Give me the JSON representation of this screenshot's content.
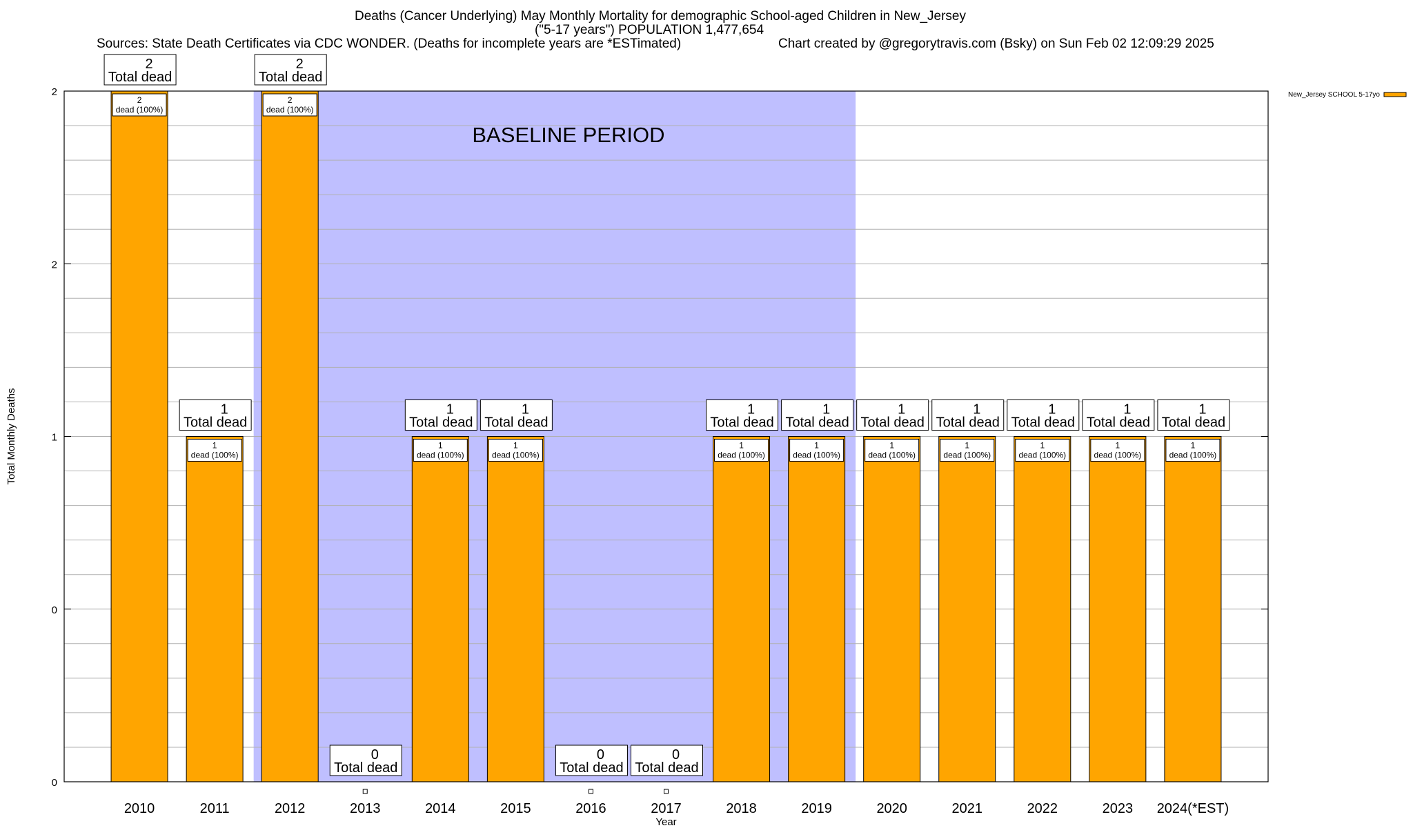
{
  "chart_data": {
    "type": "bar",
    "title": "Deaths (Cancer Underlying) May Monthly Mortality for demographic School-aged Children in New_Jersey",
    "subtitle": "(\"5-17 years\") POPULATION 1,477,654",
    "sources": "Sources: State Death Certificates via CDC WONDER. (Deaths for incomplete years are *ESTimated)",
    "credit": "Chart created by @gregorytravis.com (Bsky) on Sun Feb 02 12:09:29 2025",
    "xlabel": "Year",
    "ylabel": "Total Monthly Deaths",
    "ylim": [
      0,
      2
    ],
    "y_tick_labels": [
      "0",
      "0",
      "1",
      "2",
      "2"
    ],
    "categories": [
      "2010",
      "2011",
      "2012",
      "2013",
      "2014",
      "2015",
      "2016",
      "2017",
      "2018",
      "2019",
      "2020",
      "2021",
      "2022",
      "2023",
      "2024(*EST)"
    ],
    "series": [
      {
        "name": "New_Jersey SCHOOL 5-17yo",
        "color": "#ffa500",
        "values": [
          2,
          1,
          2,
          0,
          1,
          1,
          0,
          0,
          1,
          1,
          1,
          1,
          1,
          1,
          1
        ]
      }
    ],
    "total_label_suffix": "Total dead",
    "inner_labels": [
      "dead (100%)",
      "dead (100%)",
      "dead (100%)",
      "",
      "dead (100%)",
      "dead (100%)",
      "",
      "",
      "dead (100%)",
      "dead (100%)",
      "dead (100%)",
      "dead (100%)",
      "dead (100%)",
      "dead (100%)",
      "dead (100%)"
    ],
    "baseline": {
      "label": "BASELINE PERIOD",
      "start": "2012",
      "end": "2019",
      "color": "#bfbfff"
    },
    "legend": {
      "position": "top-right",
      "entries": [
        "New_Jersey SCHOOL 5-17yo"
      ]
    },
    "grid": true
  }
}
